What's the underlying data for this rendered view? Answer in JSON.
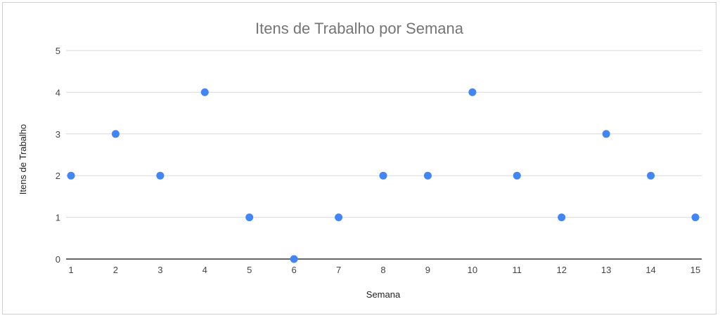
{
  "chart_data": {
    "type": "scatter",
    "title": "Itens de Trabalho por Semana",
    "xlabel": "Semana",
    "ylabel": "Itens de Trabalho",
    "xlim": [
      1,
      15
    ],
    "ylim": [
      0,
      5
    ],
    "x_ticks": [
      1,
      2,
      3,
      4,
      5,
      6,
      7,
      8,
      9,
      10,
      11,
      12,
      13,
      14,
      15
    ],
    "y_ticks": [
      0,
      1,
      2,
      3,
      4,
      5
    ],
    "grid": true,
    "legend": "none",
    "colors": {
      "point": "#4285f4",
      "grid": "#d9d9d9",
      "baseline": "#333333"
    },
    "points": [
      {
        "x": 1,
        "y": 2
      },
      {
        "x": 2,
        "y": 3
      },
      {
        "x": 3,
        "y": 2
      },
      {
        "x": 4,
        "y": 4
      },
      {
        "x": 5,
        "y": 1
      },
      {
        "x": 6,
        "y": 0
      },
      {
        "x": 7,
        "y": 1
      },
      {
        "x": 8,
        "y": 2
      },
      {
        "x": 9,
        "y": 2
      },
      {
        "x": 10,
        "y": 4
      },
      {
        "x": 11,
        "y": 2
      },
      {
        "x": 12,
        "y": 1
      },
      {
        "x": 13,
        "y": 3
      },
      {
        "x": 14,
        "y": 2
      },
      {
        "x": 15,
        "y": 1
      }
    ]
  }
}
